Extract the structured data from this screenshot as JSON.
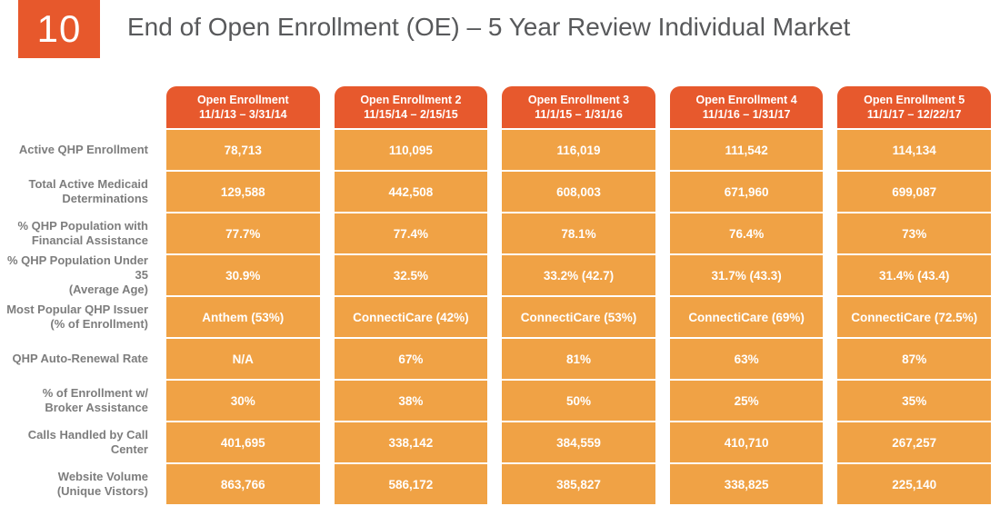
{
  "slide": {
    "badge_number": "10",
    "title": "End of Open Enrollment (OE) – 5 Year Review Individual Market"
  },
  "colors": {
    "accent_red_orange": "#E7592D",
    "cell_orange": "#F0A245",
    "title_gray": "#58595B",
    "label_gray": "#7D7D7D",
    "cell_text": "#FFFFFF"
  },
  "chart_data": {
    "type": "table",
    "title": "End of Open Enrollment (OE) – 5 Year Review Individual Market",
    "legend_position": "none",
    "columns": [
      {
        "label": "Open Enrollment",
        "dates": "11/1/13 – 3/31/14"
      },
      {
        "label": "Open Enrollment 2",
        "dates": "11/15/14 – 2/15/15"
      },
      {
        "label": "Open Enrollment 3",
        "dates": "11/1/15 – 1/31/16"
      },
      {
        "label": "Open Enrollment 4",
        "dates": "11/1/16 – 1/31/17"
      },
      {
        "label": "Open Enrollment 5",
        "dates": "11/1/17 – 12/22/17"
      }
    ],
    "rows": [
      {
        "label": "Active QHP Enrollment",
        "values": [
          "78,713",
          "110,095",
          "116,019",
          "111,542",
          "114,134"
        ]
      },
      {
        "label": "Total Active Medicaid\nDeterminations",
        "values": [
          "129,588",
          "442,508",
          "608,003",
          "671,960",
          "699,087"
        ]
      },
      {
        "label": "% QHP Population with\nFinancial Assistance",
        "values": [
          "77.7%",
          "77.4%",
          "78.1%",
          "76.4%",
          "73%"
        ]
      },
      {
        "label": "% QHP Population Under 35\n(Average Age)",
        "values": [
          "30.9%",
          "32.5%",
          "33.2% (42.7)",
          "31.7% (43.3)",
          "31.4% (43.4)"
        ]
      },
      {
        "label": "Most Popular QHP Issuer\n(% of Enrollment)",
        "values": [
          "Anthem (53%)",
          "ConnectiCare (42%)",
          "ConnectiCare (53%)",
          "ConnectiCare (69%)",
          "ConnectiCare (72.5%)"
        ]
      },
      {
        "label": "QHP Auto-Renewal Rate",
        "values": [
          "N/A",
          "67%",
          "81%",
          "63%",
          "87%"
        ]
      },
      {
        "label": "% of Enrollment w/\nBroker Assistance",
        "values": [
          "30%",
          "38%",
          "50%",
          "25%",
          "35%"
        ]
      },
      {
        "label": "Calls Handled by Call Center",
        "values": [
          "401,695",
          "338,142",
          "384,559",
          "410,710",
          "267,257"
        ]
      },
      {
        "label": "Website Volume\n(Unique Vistors)",
        "values": [
          "863,766",
          "586,172",
          "385,827",
          "338,825",
          "225,140"
        ]
      }
    ]
  }
}
